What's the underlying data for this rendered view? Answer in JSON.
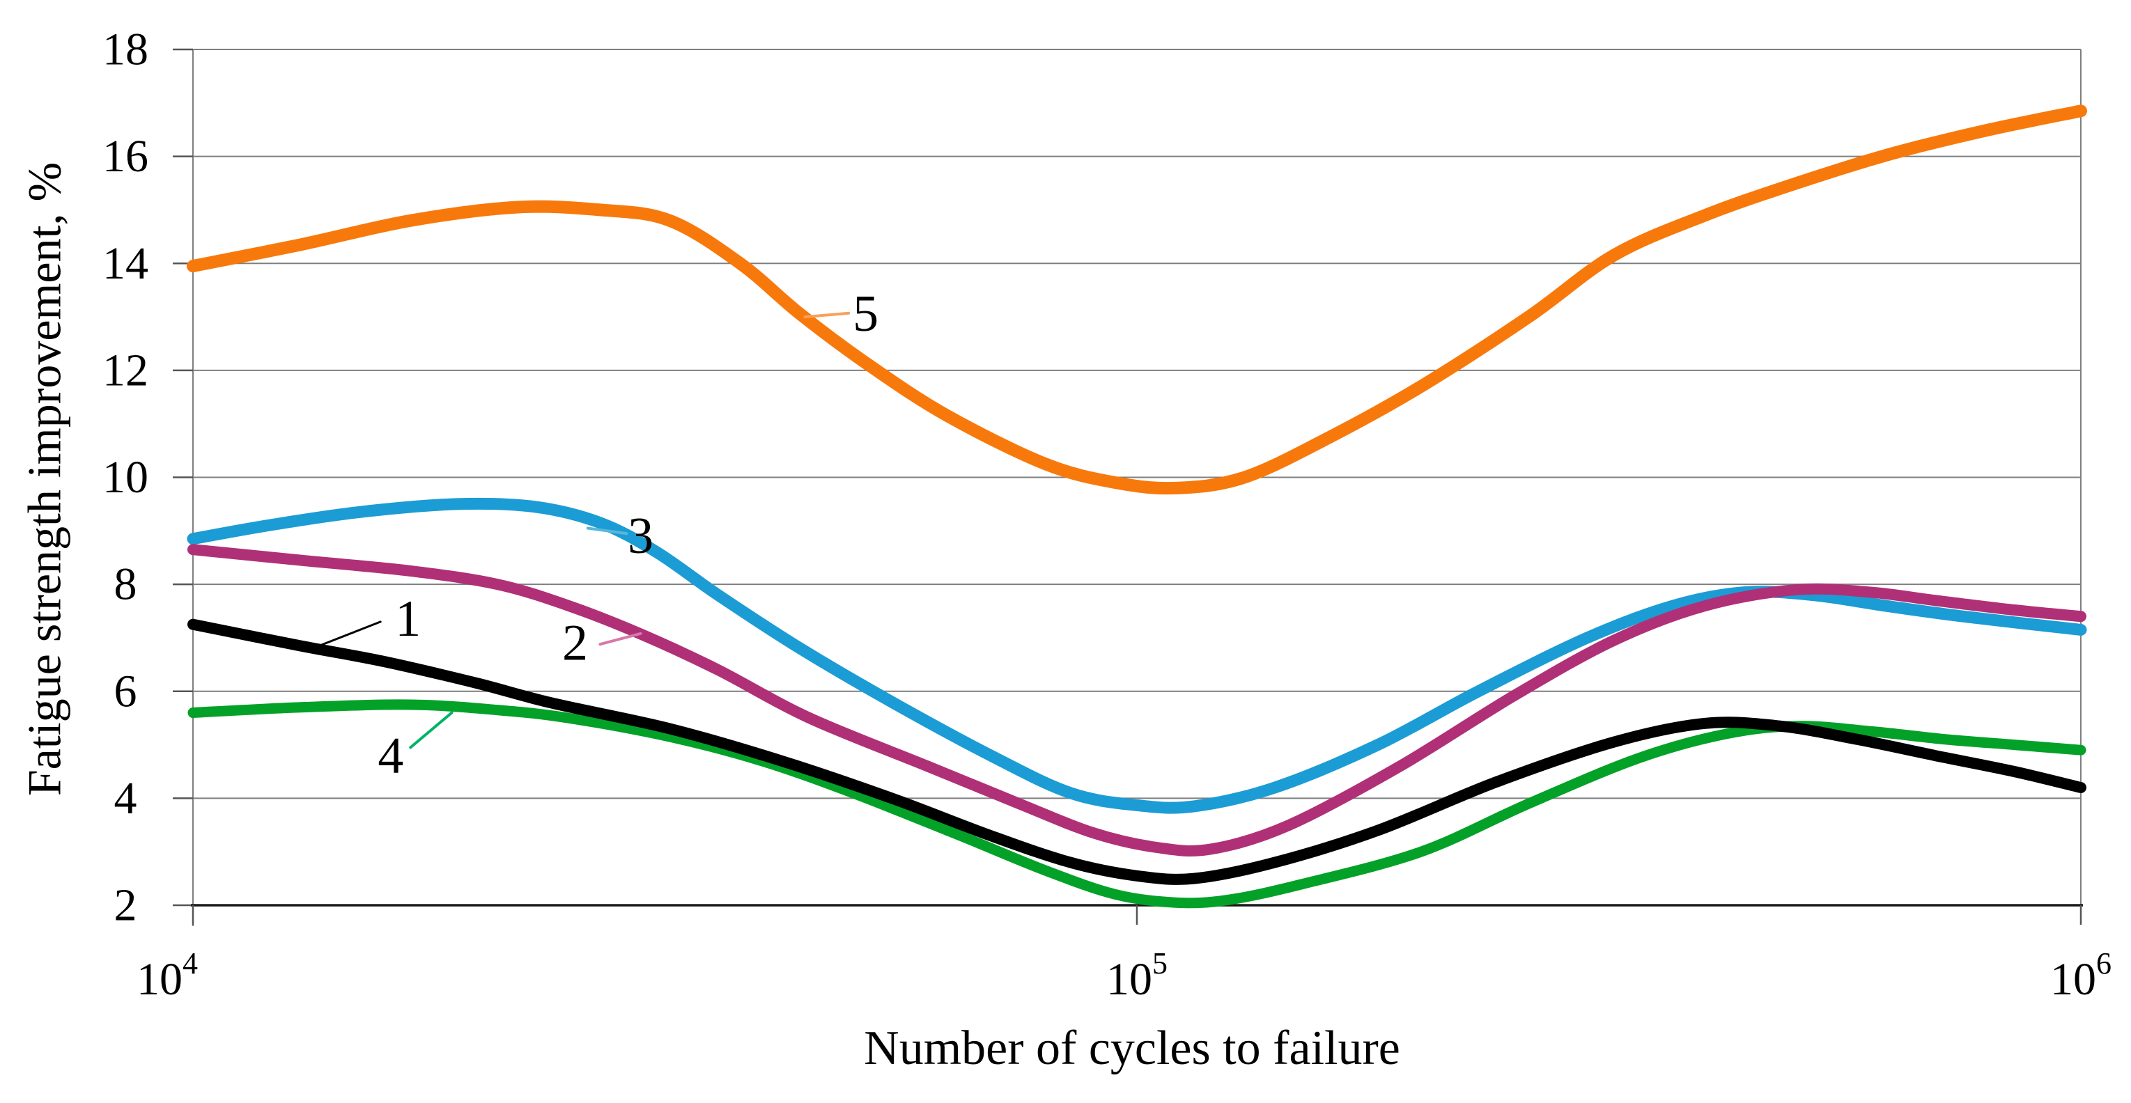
{
  "style": {
    "background": "#ffffff",
    "gridline_color": "#7f7f7f",
    "bottom_axis_color": "#1a1a1a",
    "side_axis_color": "#7f7f7f",
    "tick_color": "#555555",
    "text_color": "#000000"
  },
  "chart_data": {
    "type": "line",
    "x_scale": "log10",
    "xlabel": "Number of cycles to failure",
    "ylabel": "Fatigue strength improvement, %",
    "xlim": [
      10000,
      1000000
    ],
    "ylim": [
      2,
      18
    ],
    "grid": "horizontal",
    "legend": "none",
    "y_ticks": [
      2,
      4,
      6,
      8,
      10,
      12,
      14,
      16,
      18
    ],
    "x_ticks": [
      {
        "value": 10000,
        "base": "10",
        "exp": "4"
      },
      {
        "value": 100000,
        "base": "10",
        "exp": "5"
      },
      {
        "value": 1000000,
        "base": "10",
        "exp": "6"
      }
    ],
    "series": [
      {
        "name": "5",
        "color": "#f8790b",
        "width": 18,
        "points": [
          [
            10000,
            13.95
          ],
          [
            13000,
            14.35
          ],
          [
            17000,
            14.8
          ],
          [
            22000,
            15.05
          ],
          [
            27000,
            15.0
          ],
          [
            32000,
            14.8
          ],
          [
            38000,
            14.0
          ],
          [
            44000,
            13.05
          ],
          [
            52000,
            12.1
          ],
          [
            63000,
            11.15
          ],
          [
            80000,
            10.25
          ],
          [
            95000,
            9.9
          ],
          [
            110000,
            9.8
          ],
          [
            130000,
            10.0
          ],
          [
            160000,
            10.75
          ],
          [
            200000,
            11.7
          ],
          [
            260000,
            13.0
          ],
          [
            320000,
            14.15
          ],
          [
            400000,
            14.9
          ],
          [
            500000,
            15.5
          ],
          [
            630000,
            16.05
          ],
          [
            800000,
            16.5
          ],
          [
            1000000,
            16.85
          ]
        ]
      },
      {
        "name": "3",
        "color": "#1c9cd4",
        "width": 17,
        "points": [
          [
            10000,
            8.85
          ],
          [
            12000,
            9.1
          ],
          [
            15000,
            9.35
          ],
          [
            19000,
            9.5
          ],
          [
            23000,
            9.45
          ],
          [
            27000,
            9.15
          ],
          [
            31000,
            8.6
          ],
          [
            36000,
            7.8
          ],
          [
            44000,
            6.8
          ],
          [
            55000,
            5.8
          ],
          [
            70000,
            4.8
          ],
          [
            85000,
            4.1
          ],
          [
            100000,
            3.87
          ],
          [
            115000,
            3.85
          ],
          [
            140000,
            4.2
          ],
          [
            180000,
            5.0
          ],
          [
            230000,
            6.0
          ],
          [
            300000,
            7.0
          ],
          [
            370000,
            7.6
          ],
          [
            440000,
            7.85
          ],
          [
            520000,
            7.8
          ],
          [
            620000,
            7.6
          ],
          [
            750000,
            7.4
          ],
          [
            1000000,
            7.15
          ]
        ]
      },
      {
        "name": "2",
        "color": "#b03077",
        "width": 16,
        "points": [
          [
            10000,
            8.65
          ],
          [
            13000,
            8.45
          ],
          [
            17000,
            8.25
          ],
          [
            21000,
            8.0
          ],
          [
            25000,
            7.6
          ],
          [
            30000,
            7.05
          ],
          [
            36000,
            6.4
          ],
          [
            45000,
            5.5
          ],
          [
            60000,
            4.6
          ],
          [
            75000,
            3.9
          ],
          [
            90000,
            3.35
          ],
          [
            105000,
            3.08
          ],
          [
            120000,
            3.05
          ],
          [
            145000,
            3.5
          ],
          [
            190000,
            4.6
          ],
          [
            250000,
            5.9
          ],
          [
            320000,
            6.95
          ],
          [
            400000,
            7.6
          ],
          [
            500000,
            7.9
          ],
          [
            600000,
            7.85
          ],
          [
            700000,
            7.7
          ],
          [
            850000,
            7.52
          ],
          [
            1000000,
            7.4
          ]
        ]
      },
      {
        "name": "4",
        "color": "#03a128",
        "width": 15,
        "points": [
          [
            10000,
            5.6
          ],
          [
            13000,
            5.7
          ],
          [
            17000,
            5.75
          ],
          [
            21000,
            5.65
          ],
          [
            25000,
            5.5
          ],
          [
            32000,
            5.15
          ],
          [
            40000,
            4.7
          ],
          [
            50000,
            4.1
          ],
          [
            65000,
            3.3
          ],
          [
            80000,
            2.65
          ],
          [
            95000,
            2.2
          ],
          [
            110000,
            2.05
          ],
          [
            125000,
            2.1
          ],
          [
            150000,
            2.4
          ],
          [
            200000,
            3.0
          ],
          [
            260000,
            3.9
          ],
          [
            340000,
            4.75
          ],
          [
            420000,
            5.2
          ],
          [
            500000,
            5.35
          ],
          [
            600000,
            5.25
          ],
          [
            720000,
            5.1
          ],
          [
            850000,
            5.0
          ],
          [
            1000000,
            4.9
          ]
        ]
      },
      {
        "name": "1",
        "color": "#000000",
        "width": 16,
        "points": [
          [
            10000,
            7.25
          ],
          [
            13000,
            6.85
          ],
          [
            16000,
            6.55
          ],
          [
            20000,
            6.15
          ],
          [
            24000,
            5.78
          ],
          [
            32000,
            5.3
          ],
          [
            42000,
            4.7
          ],
          [
            55000,
            4.0
          ],
          [
            70000,
            3.3
          ],
          [
            85000,
            2.8
          ],
          [
            100000,
            2.55
          ],
          [
            115000,
            2.5
          ],
          [
            140000,
            2.8
          ],
          [
            180000,
            3.4
          ],
          [
            240000,
            4.3
          ],
          [
            320000,
            5.05
          ],
          [
            400000,
            5.4
          ],
          [
            480000,
            5.35
          ],
          [
            580000,
            5.1
          ],
          [
            700000,
            4.8
          ],
          [
            850000,
            4.5
          ],
          [
            1000000,
            4.2
          ]
        ]
      }
    ],
    "annotations": [
      {
        "label": "1",
        "x": 16900,
        "y": 7.35,
        "leader_color": "#000000",
        "leader_width": 3,
        "leader": [
          [
            13600,
            6.85
          ],
          [
            15800,
            7.3
          ]
        ]
      },
      {
        "label": "2",
        "x": 25400,
        "y": 6.9,
        "leader_color": "#d678a8",
        "leader_width": 4,
        "leader": [
          [
            29800,
            7.08
          ],
          [
            27000,
            6.88
          ]
        ]
      },
      {
        "label": "3",
        "x": 29800,
        "y": 8.9,
        "leader_color": "#58b7da",
        "leader_width": 4,
        "leader": [
          [
            26200,
            9.05
          ],
          [
            28800,
            8.95
          ]
        ]
      },
      {
        "label": "4",
        "x": 16200,
        "y": 4.79,
        "leader_color": "#00b268",
        "leader_width": 4,
        "leader": [
          [
            18800,
            5.6
          ],
          [
            17000,
            4.95
          ]
        ]
      },
      {
        "label": "5",
        "x": 51600,
        "y": 13.05,
        "leader_color": "#f9a05b",
        "leader_width": 4,
        "leader": [
          [
            44500,
            13.0
          ],
          [
            49500,
            13.07
          ]
        ]
      }
    ]
  }
}
